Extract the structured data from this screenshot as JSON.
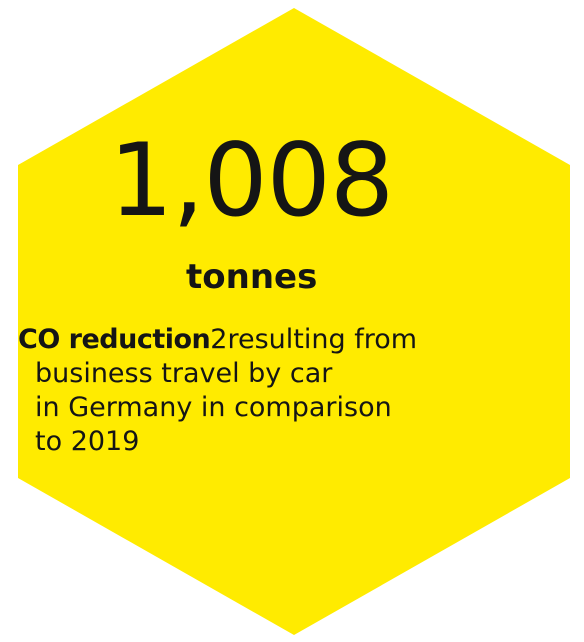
{
  "infographic": {
    "background_color": "#ffffff",
    "hexagon_color": "#ffeb00",
    "text_color": "#151515",
    "value": "1,008",
    "unit": "tonnes",
    "metric": "CO reduction",
    "subscript": "2",
    "description_line1": "resulting from",
    "description_line2": "business travel by car",
    "description_line3": "in Germany in comparison",
    "description_line4": "to 2019"
  }
}
